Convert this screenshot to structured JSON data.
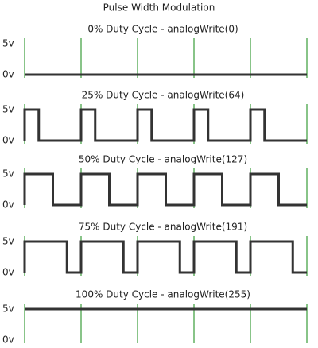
{
  "title": "Pulse Width Modulation",
  "high_label": "5v",
  "low_label": "0v",
  "panels": [
    {
      "label": "0% Duty Cycle - analogWrite(0)",
      "duty": 0
    },
    {
      "label": "25% Duty Cycle - analogWrite(64)",
      "duty": 25
    },
    {
      "label": "50% Duty Cycle - analogWrite(127)",
      "duty": 50
    },
    {
      "label": "75% Duty Cycle - analogWrite(191)",
      "duty": 75
    },
    {
      "label": "100% Duty Cycle - analogWrite(255)",
      "duty": 100
    }
  ]
}
